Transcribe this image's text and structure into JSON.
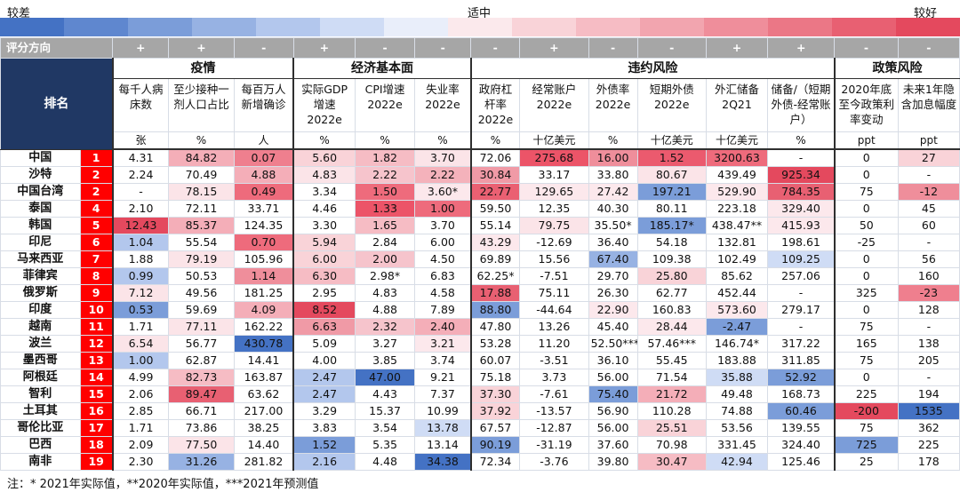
{
  "legend": {
    "left": "较差",
    "mid": "适中",
    "right": "较好",
    "gradient": [
      "#4472c4",
      "#5f87cf",
      "#7b9dd9",
      "#97b2e3",
      "#b3c7ed",
      "#cfdcf5",
      "#e9eefa",
      "#fbe9ec",
      "#f9d3d8",
      "#f6bcc4",
      "#f2a5af",
      "#ef8e9b",
      "#eb7786",
      "#e86072",
      "#e4495e"
    ]
  },
  "direction_label": "评分方向",
  "directions": [
    "+",
    "+",
    "-",
    "+",
    "-",
    "-",
    "-",
    "+",
    "-",
    "-",
    "+",
    "+",
    "-",
    "-"
  ],
  "rank_header": "排名",
  "groups": [
    {
      "label": "疫情",
      "span": 3
    },
    {
      "label": "经济基本面",
      "span": 3
    },
    {
      "label": "违约风险",
      "span": 6
    },
    {
      "label": "政策风险",
      "span": 2
    }
  ],
  "subheaders": [
    "每千人病床数",
    "至少接种一剂人口占比",
    "每百万人新增确诊",
    "实际GDP增速2022e",
    "CPI增速2022e",
    "失业率2022e",
    "政府杠杆率2022e",
    "经常账户2022e",
    "外债率2022e",
    "短期外债2022e",
    "外汇储备2Q21",
    "储备/（短期外债-经常账户）",
    "2020年底至今政策利率变动",
    "未来1年隐含加息幅度"
  ],
  "units": [
    "张",
    "%",
    "人",
    "%",
    "%",
    "%",
    "%",
    "十亿美元",
    "%",
    "十亿美元",
    "十亿美元",
    "%",
    "ppt",
    "ppt"
  ],
  "rows": [
    {
      "country": "中国",
      "rank": "1",
      "cells": [
        "4.31",
        "84.82",
        "0.07",
        "5.60",
        "1.82",
        "3.70",
        "72.06",
        "275.68",
        "16.00",
        "1.52",
        "3200.63",
        "-",
        "0",
        "27"
      ],
      "colors": [
        "#fff",
        "#f4aeb8",
        "#ef7f8e",
        "#f9d3d8",
        "#f6bcc4",
        "#fbe4e8",
        "#fff",
        "#ec5468",
        "#ef8e9b",
        "#eb5a6e",
        "#ee6b7c",
        "#fff",
        "#fff",
        "#f9d3d8"
      ]
    },
    {
      "country": "沙特",
      "rank": "2",
      "cells": [
        "2.24",
        "70.49",
        "4.88",
        "4.83",
        "2.22",
        "2.22",
        "30.84",
        "33.17",
        "33.80",
        "80.67",
        "439.49",
        "925.34",
        "0",
        "-"
      ],
      "colors": [
        "#fff",
        "#fff",
        "#f4aeb8",
        "#fbe4e8",
        "#f6c4cc",
        "#f4b2bb",
        "#f09aa6",
        "#fff",
        "#fff",
        "#fbe4e8",
        "#fff",
        "#e4495e",
        "#fff",
        "#fff"
      ]
    },
    {
      "country": "中国台湾",
      "rank": "2",
      "cells": [
        "-",
        "78.15",
        "0.49",
        "3.34",
        "1.50",
        "3.60*",
        "22.77",
        "129.65",
        "27.42",
        "197.21",
        "529.90",
        "784.35",
        "75",
        "-12"
      ],
      "colors": [
        "#fff",
        "#fbe4e8",
        "#ee6b7c",
        "#fff",
        "#ee6b7c",
        "#fce8ec",
        "#ea6072",
        "#fce8ec",
        "#fce8ec",
        "#7b9dd9",
        "#fce8ec",
        "#e86072",
        "#fff",
        "#ef8e9b"
      ]
    },
    {
      "country": "泰国",
      "rank": "4",
      "cells": [
        "2.10",
        "72.11",
        "33.71",
        "4.46",
        "1.33",
        "1.00",
        "59.50",
        "12.35",
        "40.30",
        "80.11",
        "223.18",
        "329.40",
        "0",
        "45"
      ],
      "colors": [
        "#fff",
        "#fff",
        "#fff",
        "#fff",
        "#ec5468",
        "#ee6b7c",
        "#fff",
        "#fff",
        "#fff",
        "#fff",
        "#fff",
        "#fce8ec",
        "#fff",
        "#fff"
      ]
    },
    {
      "country": "韩国",
      "rank": "5",
      "cells": [
        "12.43",
        "85.37",
        "124.35",
        "3.30",
        "1.65",
        "3.70",
        "55.14",
        "79.75",
        "35.50*",
        "185.17*",
        "438.47**",
        "415.93",
        "50",
        "60"
      ],
      "colors": [
        "#e4495e",
        "#f4aeb8",
        "#fff",
        "#fff",
        "#f6bcc4",
        "#fff",
        "#fff",
        "#fbe4e8",
        "#fff",
        "#7b9dd9",
        "#fff",
        "#fce8ec",
        "#fff",
        "#fff"
      ]
    },
    {
      "country": "印尼",
      "rank": "6",
      "cells": [
        "1.04",
        "55.54",
        "0.70",
        "5.94",
        "2.84",
        "6.00",
        "43.29",
        "-12.69",
        "36.40",
        "54.18",
        "132.81",
        "198.61",
        "-25",
        "-"
      ],
      "colors": [
        "#b3c7ed",
        "#fff",
        "#ee6b7c",
        "#f9d3d8",
        "#fff",
        "#fff",
        "#fce8ec",
        "#fff",
        "#fff",
        "#fff",
        "#fff",
        "#fff",
        "#fff",
        "#fff"
      ]
    },
    {
      "country": "马来西亚",
      "rank": "7",
      "cells": [
        "1.88",
        "79.19",
        "105.96",
        "6.00",
        "2.00",
        "4.50",
        "69.89",
        "15.56",
        "67.40",
        "109.38",
        "102.49",
        "109.25",
        "0",
        "56"
      ],
      "colors": [
        "#fff",
        "#fbe4e8",
        "#fff",
        "#f9d3d8",
        "#f6c4cc",
        "#fff",
        "#fff",
        "#fff",
        "#97b2e3",
        "#fff",
        "#fff",
        "#cfdcf5",
        "#fff",
        "#fff"
      ]
    },
    {
      "country": "菲律宾",
      "rank": "8",
      "cells": [
        "0.99",
        "50.53",
        "1.14",
        "6.30",
        "2.98*",
        "6.83",
        "62.25*",
        "-7.51",
        "29.70",
        "25.80",
        "85.62",
        "257.06",
        "0",
        "160"
      ],
      "colors": [
        "#b3c7ed",
        "#fff",
        "#ef8e9b",
        "#f6bcc4",
        "#fff",
        "#fff",
        "#fff",
        "#fff",
        "#fff",
        "#f9d3d8",
        "#fff",
        "#fff",
        "#fff",
        "#fff"
      ]
    },
    {
      "country": "俄罗斯",
      "rank": "9",
      "cells": [
        "7.12",
        "49.56",
        "181.25",
        "2.95",
        "4.83",
        "4.58",
        "17.88",
        "75.11",
        "26.30",
        "62.77",
        "452.44",
        "-",
        "325",
        "-23"
      ],
      "colors": [
        "#fbe4e8",
        "#fff",
        "#fff",
        "#fff",
        "#fff",
        "#fff",
        "#e86072",
        "#fff",
        "#fff",
        "#fff",
        "#fff",
        "#fff",
        "#fff",
        "#ef7f8e"
      ]
    },
    {
      "country": "印度",
      "rank": "10",
      "cells": [
        "0.53",
        "59.69",
        "4.09",
        "8.52",
        "4.88",
        "7.89",
        "88.80",
        "-44.64",
        "22.90",
        "160.83",
        "573.60",
        "279.17",
        "0",
        "128"
      ],
      "colors": [
        "#7b9dd9",
        "#fff",
        "#f4aeb8",
        "#e4495e",
        "#fff",
        "#fff",
        "#7b9dd9",
        "#fff",
        "#fce8ec",
        "#fff",
        "#fce8ec",
        "#fff",
        "#fff",
        "#fff"
      ]
    },
    {
      "country": "越南",
      "rank": "11",
      "cells": [
        "1.71",
        "77.11",
        "162.22",
        "6.63",
        "2.32",
        "2.40",
        "47.80",
        "13.26",
        "45.40",
        "28.44",
        "-2.47",
        "-",
        "75",
        "-"
      ],
      "colors": [
        "#fff",
        "#fbe4e8",
        "#fff",
        "#f09aa6",
        "#f6c4cc",
        "#f4aeb8",
        "#fff",
        "#fff",
        "#fff",
        "#fce8ec",
        "#7b9dd9",
        "#fff",
        "#fff",
        "#fff"
      ]
    },
    {
      "country": "波兰",
      "rank": "12",
      "cells": [
        "6.54",
        "56.77",
        "430.78",
        "5.09",
        "3.27",
        "3.21",
        "53.28",
        "11.20",
        "52.50***",
        "57.46***",
        "146.74*",
        "317.22",
        "165",
        "138"
      ],
      "colors": [
        "#fbe4e8",
        "#fff",
        "#4472c4",
        "#fff",
        "#fff",
        "#fce8ec",
        "#fff",
        "#fff",
        "#fff",
        "#fff",
        "#fff",
        "#fff",
        "#fff",
        "#fff"
      ]
    },
    {
      "country": "墨西哥",
      "rank": "13",
      "cells": [
        "1.00",
        "62.87",
        "14.41",
        "4.00",
        "3.85",
        "3.74",
        "60.07",
        "-3.51",
        "36.10",
        "55.45",
        "183.88",
        "311.85",
        "75",
        "205"
      ],
      "colors": [
        "#b3c7ed",
        "#fff",
        "#fff",
        "#fff",
        "#fff",
        "#fff",
        "#fff",
        "#fff",
        "#fff",
        "#fff",
        "#fff",
        "#fff",
        "#fff",
        "#fff"
      ]
    },
    {
      "country": "阿根廷",
      "rank": "14",
      "cells": [
        "4.99",
        "82.73",
        "163.87",
        "2.47",
        "47.00",
        "9.21",
        "75.18",
        "3.73",
        "56.00",
        "71.54",
        "35.88",
        "52.92",
        "0",
        "-"
      ],
      "colors": [
        "#fff",
        "#f6bcc4",
        "#fff",
        "#b3c7ed",
        "#4472c4",
        "#fff",
        "#fff",
        "#fff",
        "#fff",
        "#fff",
        "#cfdcf5",
        "#7b9dd9",
        "#fff",
        "#fff"
      ]
    },
    {
      "country": "智利",
      "rank": "15",
      "cells": [
        "2.06",
        "89.47",
        "63.62",
        "2.47",
        "4.43",
        "7.37",
        "37.30",
        "-7.61",
        "75.40",
        "21.72",
        "49.48",
        "168.73",
        "225",
        "194"
      ],
      "colors": [
        "#fff",
        "#e86072",
        "#fff",
        "#b3c7ed",
        "#fff",
        "#fff",
        "#f9d3d8",
        "#fff",
        "#7b9dd9",
        "#f4aeb8",
        "#fff",
        "#fff",
        "#fff",
        "#fff"
      ]
    },
    {
      "country": "土耳其",
      "rank": "16",
      "cells": [
        "2.85",
        "66.71",
        "217.00",
        "3.29",
        "15.37",
        "10.99",
        "37.92",
        "-13.57",
        "56.90",
        "110.28",
        "74.88",
        "60.46",
        "-200",
        "1535"
      ],
      "colors": [
        "#fff",
        "#fff",
        "#fff",
        "#fff",
        "#fff",
        "#fff",
        "#f9d3d8",
        "#fff",
        "#fff",
        "#fff",
        "#fff",
        "#7b9dd9",
        "#e4495e",
        "#4472c4"
      ]
    },
    {
      "country": "哥伦比亚",
      "rank": "17",
      "cells": [
        "1.71",
        "73.86",
        "38.25",
        "3.83",
        "3.54",
        "13.78",
        "67.57",
        "-12.87",
        "56.00",
        "25.51",
        "53.56",
        "139.55",
        "75",
        "362"
      ],
      "colors": [
        "#fff",
        "#fff",
        "#fff",
        "#fff",
        "#fff",
        "#cfdcf5",
        "#fff",
        "#fff",
        "#fff",
        "#f9d3d8",
        "#fff",
        "#fff",
        "#fff",
        "#fff"
      ]
    },
    {
      "country": "巴西",
      "rank": "18",
      "cells": [
        "2.09",
        "77.50",
        "14.40",
        "1.52",
        "5.35",
        "13.14",
        "90.19",
        "-31.19",
        "37.60",
        "70.98",
        "331.45",
        "324.40",
        "725",
        "225"
      ],
      "colors": [
        "#fff",
        "#fbe4e8",
        "#fff",
        "#7b9dd9",
        "#fff",
        "#fff",
        "#7b9dd9",
        "#fff",
        "#fff",
        "#fff",
        "#fff",
        "#fff",
        "#7b9dd9",
        "#fff"
      ]
    },
    {
      "country": "南非",
      "rank": "19",
      "cells": [
        "2.30",
        "31.26",
        "281.82",
        "2.16",
        "4.48",
        "34.38",
        "72.34",
        "-3.76",
        "39.80",
        "30.47",
        "42.94",
        "125.46",
        "25",
        "178"
      ],
      "colors": [
        "#fff",
        "#97b2e3",
        "#fff",
        "#b3c7ed",
        "#fff",
        "#4472c4",
        "#fff",
        "#fff",
        "#fff",
        "#f6bcc4",
        "#cfdcf5",
        "#fff",
        "#fff",
        "#fff"
      ]
    }
  ],
  "note": "注：* 2021年实际值，**2020年实际值，***2021年预测值"
}
